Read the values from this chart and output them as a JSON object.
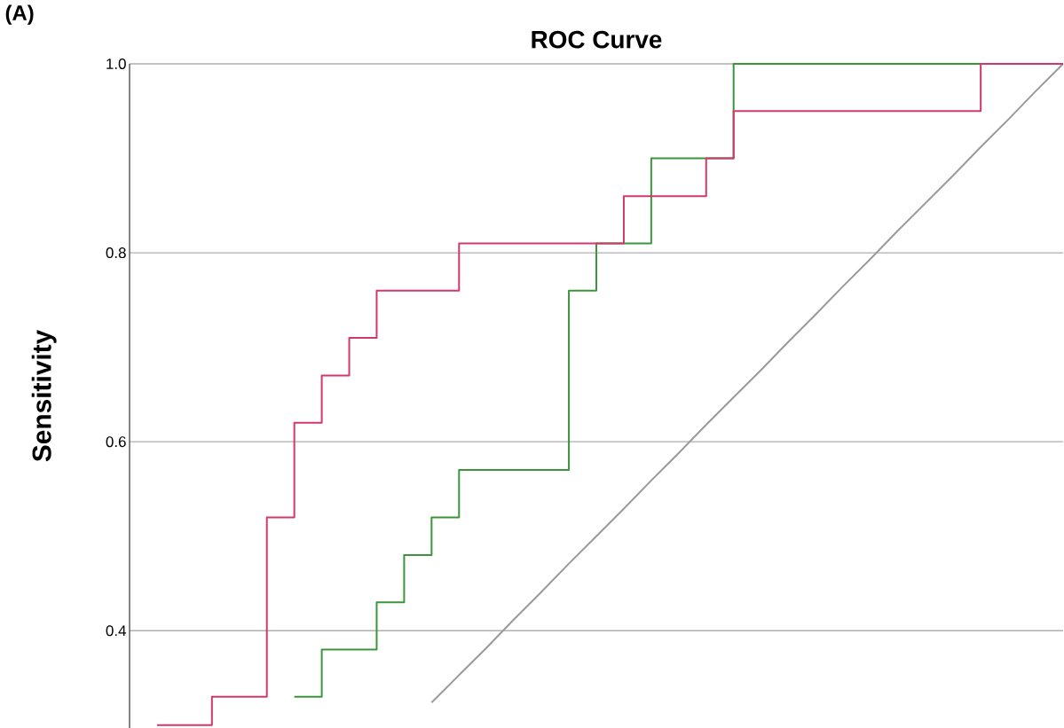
{
  "chart_data": {
    "type": "step",
    "title": "ROC Curve",
    "ylabel": "Sensitivity",
    "annotations": [
      "(A)"
    ],
    "categories": [
      null,
      null,
      null,
      null,
      null,
      null,
      null,
      null,
      null,
      null,
      null,
      null,
      null,
      null,
      null,
      null,
      null,
      null,
      null,
      null,
      null,
      null,
      null,
      null,
      null,
      null,
      null,
      null,
      null,
      null,
      null,
      null,
      null,
      null,
      null
    ],
    "ylim": [
      0.297,
      1.0
    ],
    "yticks": [
      {
        "value": 0.4,
        "label": "0.4"
      },
      {
        "value": 0.6,
        "label": "0.6"
      },
      {
        "value": 0.8,
        "label": "0.8"
      },
      {
        "value": 1.0,
        "label": "1.0"
      }
    ],
    "tick_labels": "y",
    "grid": "y",
    "series": [
      {
        "color": "#d2386c",
        "values": [
          null,
          0.3,
          0.3,
          0.33,
          0.33,
          0.52,
          0.62,
          0.67,
          0.71,
          0.76,
          0.76,
          0.76,
          0.81,
          0.81,
          0.81,
          0.81,
          0.81,
          0.81,
          0.86,
          0.86,
          0.86,
          0.9,
          0.95,
          0.95,
          0.95,
          0.95,
          0.95,
          0.95,
          0.95,
          0.95,
          0.95,
          1.0,
          1.0,
          1.0,
          1.0
        ]
      },
      {
        "color": "#3a963a",
        "values": [
          null,
          null,
          null,
          null,
          null,
          null,
          0.33,
          0.38,
          0.38,
          0.43,
          0.48,
          0.52,
          0.57,
          0.57,
          0.57,
          0.57,
          0.76,
          0.81,
          0.81,
          0.9,
          0.9,
          0.9,
          1.0,
          1.0,
          1.0,
          1.0,
          1.0,
          1.0,
          1.0,
          1.0,
          1.0,
          1.0,
          null,
          null,
          null
        ]
      },
      {
        "type": "line",
        "color": "#9a9a9a",
        "values": [
          null,
          null,
          null,
          null,
          null,
          null,
          null,
          null,
          null,
          null,
          null,
          0.324,
          0.353,
          0.382,
          0.412,
          0.441,
          0.471,
          0.5,
          0.529,
          0.559,
          0.588,
          0.618,
          0.647,
          0.676,
          0.706,
          0.735,
          0.765,
          0.794,
          0.824,
          0.853,
          0.882,
          0.912,
          0.941,
          0.971,
          1.0
        ]
      }
    ]
  }
}
